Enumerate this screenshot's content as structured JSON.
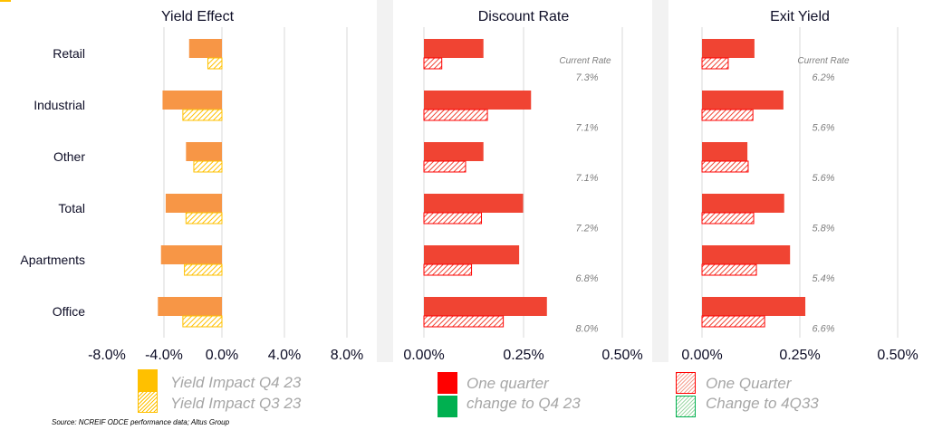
{
  "colors": {
    "yield_q4": "#F79646",
    "yield_q3": "#FFC000",
    "discount": "#F04433",
    "legend_red": "#FF0000",
    "legend_green": "#00B050"
  },
  "chart_data": [
    {
      "type": "bar",
      "orientation": "horizontal",
      "title": "Yield Effect",
      "categories": [
        "Retail",
        "Industrial",
        "Other",
        "Total",
        "Apartments",
        "Office"
      ],
      "xlim": [
        -8,
        8
      ],
      "xticks": [
        "-8.0%",
        "-4.0%",
        "0.0%",
        "4.0%",
        "8.0%"
      ],
      "grid": true,
      "series": [
        {
          "name": "Yield Impact Q4 23",
          "values": [
            -2.1,
            -3.8,
            -2.3,
            -3.6,
            -3.9,
            -4.1
          ]
        },
        {
          "name": "Yield Impact Q3 23",
          "values": [
            -0.9,
            -2.5,
            -1.8,
            -2.3,
            -2.4,
            -2.5
          ]
        }
      ]
    },
    {
      "type": "bar",
      "orientation": "horizontal",
      "title": "Discount Rate",
      "categories": [
        "Retail",
        "Industrial",
        "Other",
        "Total",
        "Apartments",
        "Office"
      ],
      "xlim": [
        0,
        0.5
      ],
      "xticks": [
        "0.00%",
        "0.25%",
        "0.50%"
      ],
      "grid": true,
      "series": [
        {
          "values": [
            0.15,
            0.27,
            0.15,
            0.25,
            0.24,
            0.31
          ]
        },
        {
          "values": [
            0.045,
            0.16,
            0.105,
            0.145,
            0.12,
            0.2
          ]
        }
      ],
      "annotation_title": "Current Rate",
      "annotations": [
        "7.3%",
        "7.1%",
        "7.1%",
        "7.2%",
        "6.8%",
        "8.0%"
      ]
    },
    {
      "type": "bar",
      "orientation": "horizontal",
      "title": "Exit Yield",
      "categories": [
        "Retail",
        "Industrial",
        "Other",
        "Total",
        "Apartments",
        "Office"
      ],
      "xlim": [
        0,
        0.5
      ],
      "xticks": [
        "0.00%",
        "0.25%",
        "0.50%"
      ],
      "grid": true,
      "series": [
        {
          "values": [
            0.134,
            0.208,
            0.116,
            0.21,
            0.225,
            0.264
          ]
        },
        {
          "values": [
            0.067,
            0.13,
            0.118,
            0.132,
            0.139,
            0.16
          ]
        }
      ],
      "annotation_title": "Current Rate",
      "annotations": [
        "6.2%",
        "5.6%",
        "5.6%",
        "5.8%",
        "5.4%",
        "6.6%"
      ]
    }
  ],
  "legend": {
    "yield": [
      "Yield Impact Q4 23",
      "Yield Impact Q3 23"
    ],
    "discount": [
      "One quarter",
      "change to Q4 23"
    ],
    "exit": [
      "One Quarter",
      "Change to 4Q33"
    ]
  },
  "source": "Source: NCREIF ODCE performance data; Altus Group"
}
